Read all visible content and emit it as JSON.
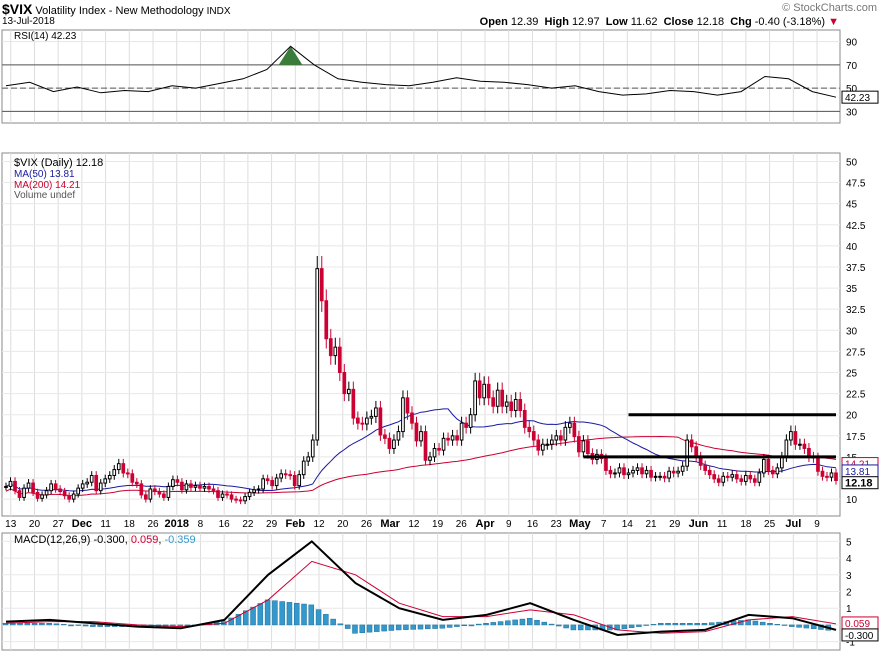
{
  "header": {
    "symbol": "$VIX",
    "name": "Volatility Index - New Methodology",
    "exchange": "INDX",
    "date": "13-Jul-2018",
    "brand": "© StockCharts.com",
    "open_label": "Open",
    "open": "12.39",
    "high_label": "High",
    "high": "12.97",
    "low_label": "Low",
    "low": "11.62",
    "close_label": "Close",
    "close": "12.18",
    "chg_label": "Chg",
    "chg": "-0.40 (-3.18%)"
  },
  "legend": {
    "rsi": "RSI(14) 42.23",
    "price": "$VIX (Daily) 12.18",
    "ma50": "MA(50) 13.81",
    "ma200": "MA(200) 14.21",
    "volume": "Volume undef",
    "macd_label": "MACD(12,26,9)",
    "macd_value": "-0.300",
    "macd_signal": "0.059",
    "macd_hist": "-0.359"
  },
  "colors": {
    "up": "#000000",
    "down": "#cc0033",
    "ma50": "#1a1aa0",
    "ma200": "#cc0033",
    "rsi_fill": "#3a7d3a",
    "macd_line": "#000000",
    "macd_signal": "#cc0033",
    "macd_hist": "#3399cc"
  },
  "chart_data": [
    {
      "type": "line",
      "name": "RSI(14)",
      "ylim": [
        20,
        100
      ],
      "yticks": [
        30,
        50,
        70,
        90
      ],
      "reference_lines": [
        30,
        50,
        70
      ],
      "last_value_label": "42.23",
      "x": [
        "Nov 13",
        "Nov 20",
        "Nov 27",
        "Dec 4",
        "Dec 11",
        "Dec 18",
        "Dec 26",
        "Jan 2",
        "Jan 8",
        "Jan 16",
        "Jan 22",
        "Jan 29",
        "Feb 5",
        "Feb 12",
        "Feb 20",
        "Feb 26",
        "Mar 5",
        "Mar 12",
        "Mar 19",
        "Mar 26",
        "Apr 2",
        "Apr 9",
        "Apr 16",
        "Apr 23",
        "Apr 30",
        "May 7",
        "May 14",
        "May 21",
        "May 29",
        "Jun 4",
        "Jun 11",
        "Jun 18",
        "Jun 25",
        "Jul 2",
        "Jul 9",
        "Jul 13"
      ],
      "values": [
        52,
        55,
        47,
        51,
        46,
        48,
        47,
        52,
        50,
        54,
        58,
        66,
        86,
        70,
        58,
        55,
        53,
        52,
        55,
        59,
        56,
        55,
        53,
        50,
        52,
        47,
        44,
        45,
        48,
        47,
        44,
        47,
        60,
        58,
        47,
        42.23
      ]
    },
    {
      "type": "candlestick",
      "name": "$VIX (Daily)",
      "ylim": [
        8,
        51
      ],
      "yticks": [
        10,
        12.5,
        15,
        17.5,
        20,
        22.5,
        25,
        27.5,
        30,
        32.5,
        35,
        37.5,
        40,
        42.5,
        45,
        47.5,
        50
      ],
      "x_tick_labels": [
        "13",
        "20",
        "27",
        "Dec",
        "11",
        "18",
        "26",
        "2018",
        "8",
        "16",
        "22",
        "29",
        "Feb",
        "12",
        "20",
        "26",
        "Mar",
        "12",
        "19",
        "26",
        "Apr",
        "9",
        "16",
        "23",
        "May",
        "7",
        "14",
        "21",
        "29",
        "Jun",
        "11",
        "18",
        "25",
        "Jul",
        "9"
      ],
      "last_labels": [
        "14.21",
        "13.81",
        "12.18"
      ],
      "horizontal_lines": [
        {
          "y": 20.0,
          "from": "Apr 23",
          "to": "Jul 13"
        },
        {
          "y": 15.0,
          "from": "Apr 9",
          "to": "Jul 13"
        }
      ],
      "close": [
        11.5,
        12.1,
        11.0,
        10.2,
        11.3,
        11.9,
        10.8,
        10.1,
        10.5,
        11.0,
        11.8,
        11.2,
        10.9,
        10.4,
        10.0,
        10.6,
        11.3,
        11.8,
        12.0,
        12.8,
        11.0,
        11.9,
        12.4,
        12.8,
        13.5,
        14.2,
        13.1,
        13.0,
        12.0,
        11.8,
        10.5,
        10.0,
        11.2,
        10.9,
        10.6,
        10.2,
        11.5,
        12.3,
        12.0,
        11.1,
        11.8,
        11.4,
        11.6,
        11.3,
        11.5,
        11.2,
        11.0,
        10.2,
        10.6,
        10.5,
        10.0,
        9.9,
        9.8,
        10.3,
        10.8,
        11.1,
        11.2,
        12.4,
        12.2,
        11.6,
        12.5,
        13.0,
        12.9,
        12.8,
        11.6,
        12.9,
        14.5,
        15.0,
        17.0,
        37.3,
        33.5,
        29.0,
        27.0,
        28.0,
        25.0,
        22.5,
        23.0,
        19.6,
        19.0,
        18.9,
        19.6,
        19.8,
        20.8,
        17.6,
        17.2,
        16.0,
        17.0,
        18.0,
        22.0,
        20.2,
        19.0,
        16.9,
        18.0,
        14.6,
        15.0,
        16.0,
        15.8,
        17.2,
        17.0,
        17.5,
        17.0,
        19.0,
        18.5,
        20.0,
        24.0,
        22.0,
        23.6,
        22.0,
        21.0,
        22.9,
        21.0,
        21.5,
        20.5,
        21.8,
        20.5,
        18.5,
        18.0,
        17.0,
        15.8,
        16.5,
        16.5,
        17.0,
        17.5,
        17.0,
        18.5,
        19.0,
        17.4,
        15.6,
        16.9,
        15.4,
        14.7,
        15.3,
        14.8,
        13.4,
        13.0,
        13.1,
        13.7,
        12.9,
        13.1,
        13.4,
        13.7,
        13.0,
        13.4,
        12.6,
        12.7,
        12.7,
        12.5,
        13.3,
        13.1,
        13.3,
        13.9,
        17.0,
        16.2,
        15.0,
        14.0,
        13.4,
        12.9,
        12.4,
        12.0,
        12.7,
        12.6,
        12.9,
        12.4,
        12.1,
        12.8,
        12.4,
        12.0,
        13.1,
        14.7,
        13.4,
        13.0,
        13.7,
        15.0,
        17.0,
        18.0,
        16.5,
        16.5,
        16.0,
        15.0,
        14.9,
        13.3,
        12.7,
        12.6,
        13.1,
        12.2
      ]
    },
    {
      "type": "line",
      "name": "MACD(12,26,9)",
      "ylim": [
        -1.5,
        5.5
      ],
      "yticks": [
        -1,
        0,
        1,
        2,
        3,
        4,
        5
      ],
      "last_labels": [
        "0.059",
        "-0.300"
      ],
      "x": [
        "Nov 13",
        "Nov 27",
        "Dec 11",
        "Dec 26",
        "Jan 8",
        "Jan 22",
        "Feb 5",
        "Feb 12",
        "Feb 20",
        "Mar 5",
        "Mar 19",
        "Apr 2",
        "Apr 16",
        "Apr 30",
        "May 14",
        "May 29",
        "Jun 11",
        "Jun 25",
        "Jul 9",
        "Jul 13"
      ],
      "series": [
        {
          "name": "MACD",
          "values": [
            0.2,
            0.3,
            0.1,
            -0.1,
            -0.2,
            0.3,
            3.0,
            5.0,
            2.5,
            1.0,
            0.3,
            0.6,
            1.3,
            0.3,
            -0.6,
            -0.4,
            -0.3,
            0.6,
            0.4,
            -0.3
          ]
        },
        {
          "name": "Signal",
          "values": [
            0.1,
            0.2,
            0.2,
            0.0,
            -0.1,
            0.1,
            1.5,
            3.8,
            3.0,
            1.3,
            0.5,
            0.5,
            0.9,
            0.6,
            -0.3,
            -0.5,
            -0.4,
            0.3,
            0.5,
            0.06
          ]
        },
        {
          "name": "Histogram",
          "values": [
            0.1,
            0.1,
            -0.1,
            -0.1,
            -0.1,
            0.2,
            1.5,
            1.2,
            -0.5,
            -0.3,
            -0.2,
            0.1,
            0.4,
            -0.3,
            -0.3,
            0.1,
            0.1,
            0.3,
            -0.1,
            -0.36
          ]
        }
      ]
    }
  ]
}
